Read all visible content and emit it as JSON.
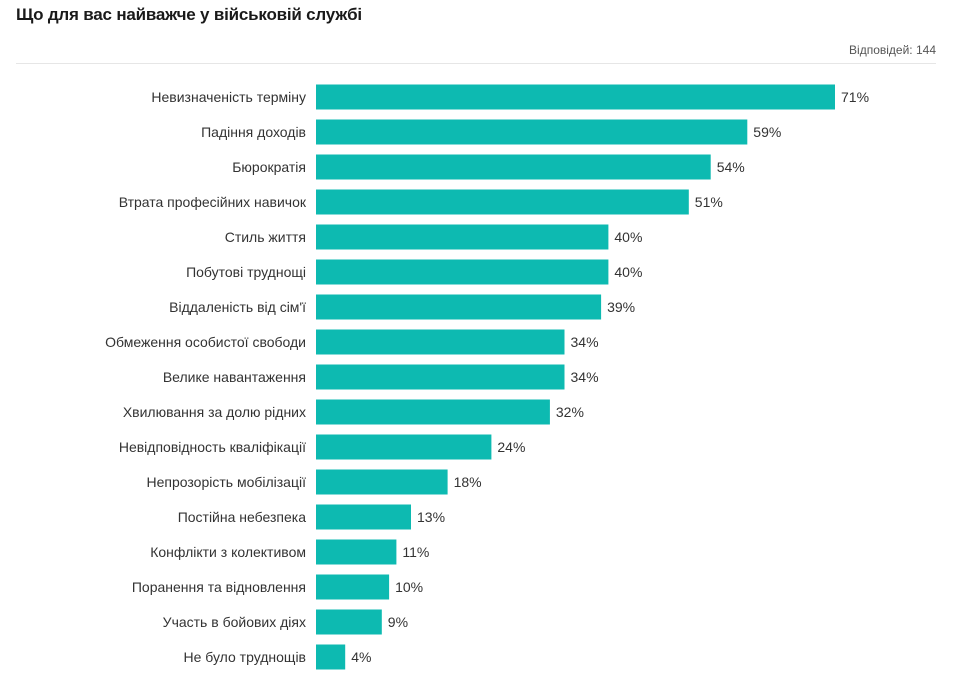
{
  "header": {
    "title": "Що для вас найважче у військовій службі",
    "respondents": "Відповідей: 144"
  },
  "colors": {
    "bar": "#0dbab1"
  },
  "chart_data": {
    "type": "bar",
    "orientation": "horizontal",
    "title": "Що для вас найважче у військовій службі",
    "value_suffix": "%",
    "categories": [
      "Невизначеність терміну",
      "Падіння доходів",
      "Бюрократія",
      "Втрата професійних навичок",
      "Стиль життя",
      "Побутові труднощі",
      "Віддаленість від сім'ї",
      "Обмеження особистої свободи",
      "Велике навантаження",
      "Хвилювання за долю рідних",
      "Невідповідность кваліфікації",
      "Непрозорість мобілізації",
      "Постійна небезпека",
      "Конфлікти з колективом",
      "Поранення та відновлення",
      "Участь в бойових діях",
      "Не було труднощів"
    ],
    "values": [
      71,
      59,
      54,
      51,
      40,
      40,
      39,
      34,
      34,
      32,
      24,
      18,
      13,
      11,
      10,
      9,
      4
    ],
    "labels": [
      "71%",
      "59%",
      "54%",
      "51%",
      "40%",
      "40%",
      "39%",
      "34%",
      "34%",
      "32%",
      "24%",
      "18%",
      "13%",
      "11%",
      "10%",
      "9%",
      "4%"
    ],
    "xlim": [
      0,
      71
    ],
    "grid": false,
    "legend": "none"
  }
}
